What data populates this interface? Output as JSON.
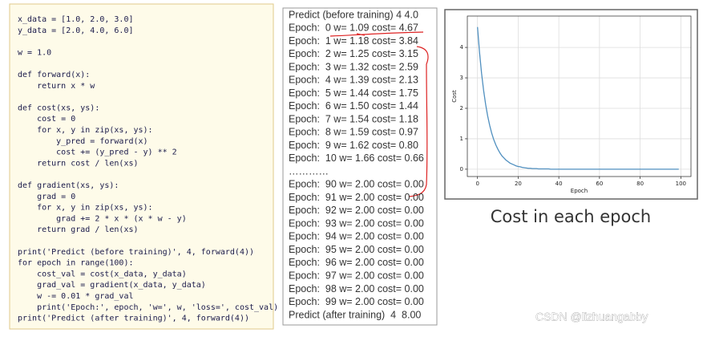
{
  "code": {
    "blocks": [
      [
        "x_data = [1.0, 2.0, 3.0]",
        "y_data = [2.0, 4.0, 6.0]"
      ],
      [
        "w = 1.0"
      ],
      [
        "def forward(x):",
        "    return x * w"
      ],
      [
        "def cost(xs, ys):",
        "    cost = 0",
        "    for x, y in zip(xs, ys):",
        "        y_pred = forward(x)",
        "        cost += (y_pred - y) ** 2",
        "    return cost / len(xs)"
      ],
      [
        "def gradient(xs, ys):",
        "    grad = 0",
        "    for x, y in zip(xs, ys):",
        "        grad += 2 * x * (x * w - y)",
        "    return grad / len(xs)"
      ],
      [
        "print('Predict (before training)', 4, forward(4))",
        "for epoch in range(100):",
        "    cost_val = cost(x_data, y_data)",
        "    grad_val = gradient(x_data, y_data)",
        "    w -= 0.01 * grad_val",
        "    print('Epoch:', epoch, 'w=', w, 'loss=', cost_val)",
        "print('Predict (after training)', 4, forward(4))"
      ]
    ]
  },
  "output": {
    "lines": [
      "Predict (before training) 4 4.0",
      "Epoch:  0 w= 1.09 cost= 4.67",
      "Epoch:  1 w= 1.18 cost= 3.84",
      "Epoch:  2 w= 1.25 cost= 3.15",
      "Epoch:  3 w= 1.32 cost= 2.59",
      "Epoch:  4 w= 1.39 cost= 2.13",
      "Epoch:  5 w= 1.44 cost= 1.75",
      "Epoch:  6 w= 1.50 cost= 1.44",
      "Epoch:  7 w= 1.54 cost= 1.18",
      "Epoch:  8 w= 1.59 cost= 0.97",
      "Epoch:  9 w= 1.62 cost= 0.80",
      "Epoch:  10 w= 1.66 cost= 0.66",
      "…………",
      "Epoch:  90 w= 2.00 cost= 0.00",
      "Epoch:  91 w= 2.00 cost= 0.00",
      "Epoch:  92 w= 2.00 cost= 0.00",
      "Epoch:  93 w= 2.00 cost= 0.00",
      "Epoch:  94 w= 2.00 cost= 0.00",
      "Epoch:  95 w= 2.00 cost= 0.00",
      "Epoch:  96 w= 2.00 cost= 0.00",
      "Epoch:  97 w= 2.00 cost= 0.00",
      "Epoch:  98 w= 2.00 cost= 0.00",
      "Epoch:  99 w= 2.00 cost= 0.00",
      "Predict (after training)  4  8.00"
    ]
  },
  "chart_data": {
    "type": "line",
    "x_label": "Epoch",
    "y_label": "Cost",
    "x": [
      0,
      1,
      2,
      3,
      4,
      5,
      6,
      7,
      8,
      9,
      10,
      11,
      12,
      13,
      14,
      15,
      16,
      17,
      18,
      19,
      20,
      21,
      22,
      23,
      24,
      25,
      26,
      27,
      28,
      29,
      30,
      31,
      32,
      33,
      34,
      35,
      36,
      37,
      38,
      39,
      40,
      41,
      42,
      43,
      44,
      45,
      46,
      47,
      48,
      49,
      50,
      51,
      52,
      53,
      54,
      55,
      56,
      57,
      58,
      59,
      60,
      61,
      62,
      63,
      64,
      65,
      66,
      67,
      68,
      69,
      70,
      71,
      72,
      73,
      74,
      75,
      76,
      77,
      78,
      79,
      80,
      81,
      82,
      83,
      84,
      85,
      86,
      87,
      88,
      89,
      90,
      91,
      92,
      93,
      94,
      95,
      96,
      97,
      98,
      99
    ],
    "series": [
      {
        "color": "#4f8fbf",
        "values": [
          4.67,
          3.84,
          3.15,
          2.59,
          2.13,
          1.75,
          1.44,
          1.18,
          0.97,
          0.8,
          0.66,
          0.54,
          0.44,
          0.37,
          0.3,
          0.25,
          0.2,
          0.17,
          0.14,
          0.11,
          0.09,
          0.08,
          0.06,
          0.05,
          0.04,
          0.03,
          0.03,
          0.02,
          0.02,
          0.02,
          0.01,
          0.01,
          0.01,
          0.01,
          0.01,
          0.01,
          0,
          0,
          0,
          0,
          0,
          0,
          0,
          0,
          0,
          0,
          0,
          0,
          0,
          0,
          0,
          0,
          0,
          0,
          0,
          0,
          0,
          0,
          0,
          0,
          0,
          0,
          0,
          0,
          0,
          0,
          0,
          0,
          0,
          0,
          0,
          0,
          0,
          0,
          0,
          0,
          0,
          0,
          0,
          0,
          0,
          0,
          0,
          0,
          0,
          0,
          0,
          0,
          0,
          0,
          0,
          0,
          0,
          0,
          0,
          0,
          0,
          0,
          0,
          0
        ]
      }
    ],
    "xlim": [
      -5,
      105
    ],
    "xticks": [
      0,
      20,
      40,
      60,
      80,
      100
    ],
    "ylim": [
      -0.24,
      5.03
    ],
    "yticks": [
      0,
      1,
      2,
      3,
      4
    ],
    "grid": true
  },
  "caption": "Cost in each epoch",
  "watermark": "CSDN @lizhuangabby"
}
